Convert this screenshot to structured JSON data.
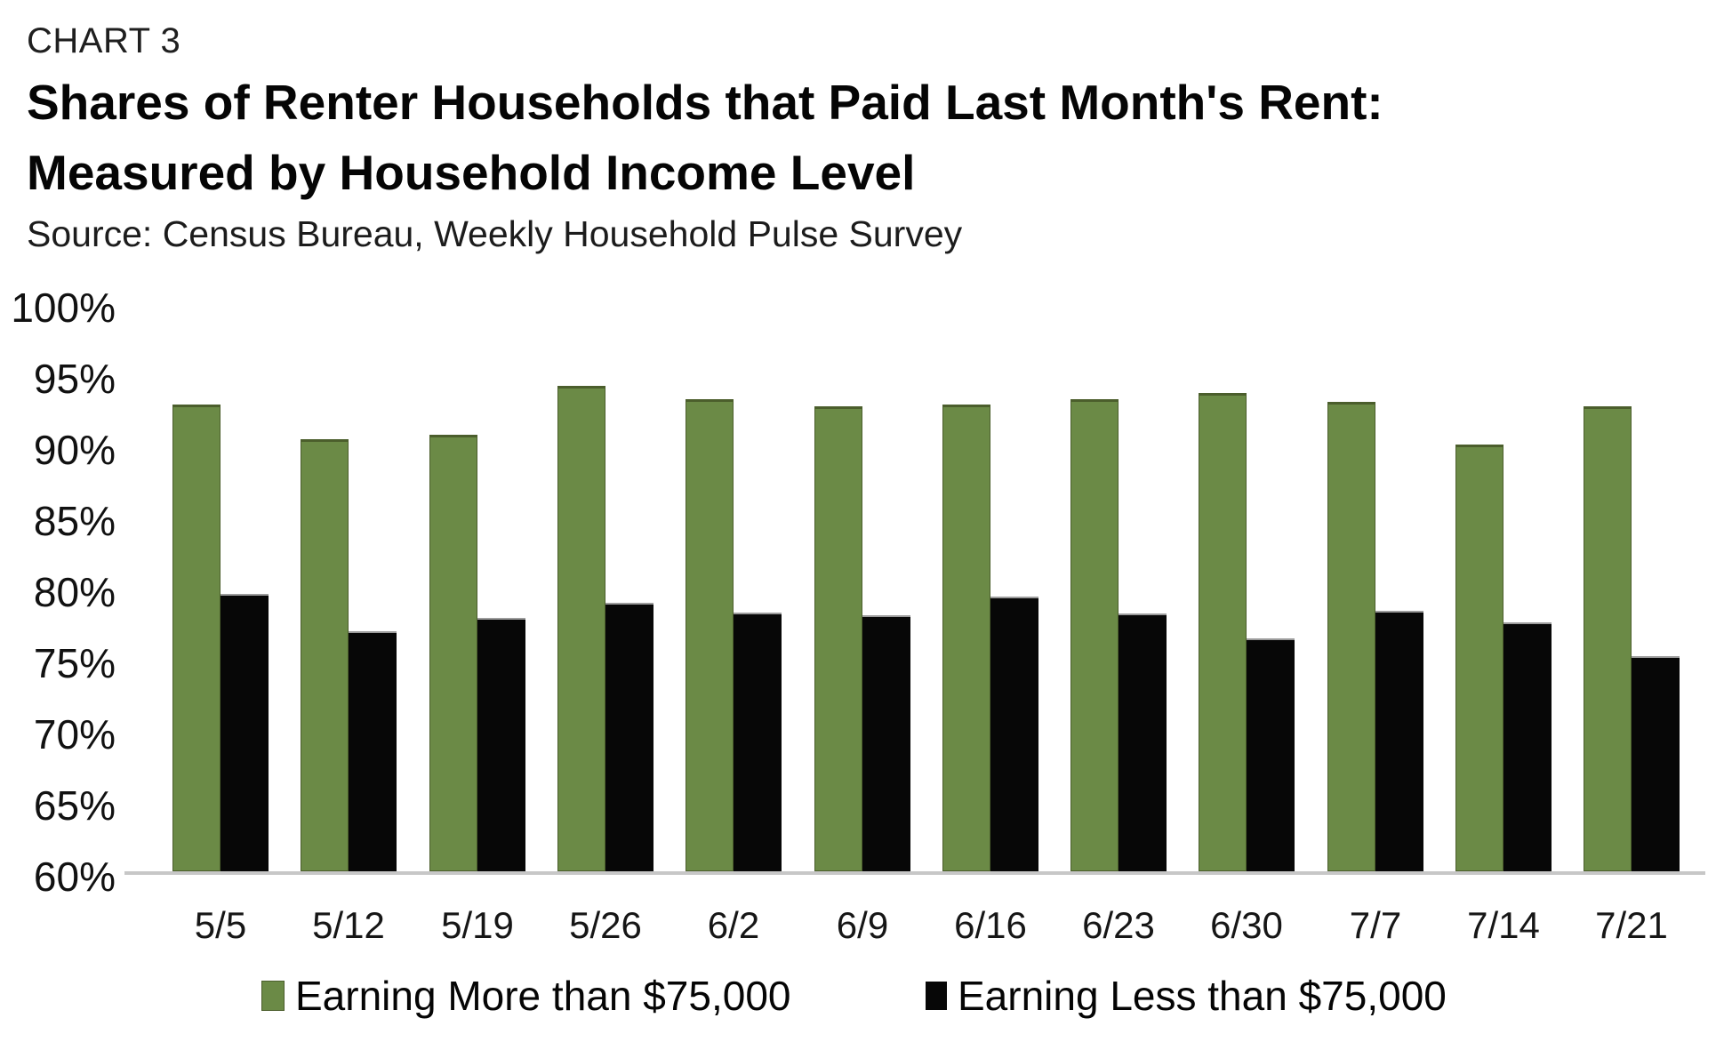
{
  "header": {
    "eyebrow": "CHART 3",
    "title_line1": "Shares of Renter Households that Paid Last Month's Rent:",
    "title_line2": "Measured by Household Income Level",
    "source": "Source: Census Bureau, Weekly Household Pulse Survey"
  },
  "chart_data": {
    "type": "bar",
    "title": "Shares of Renter Households that Paid Last Month's Rent: Measured by Household Income Level",
    "subtitle": "CHART 3",
    "source": "Source: Census Bureau, Weekly Household Pulse Survey",
    "categories": [
      "5/5",
      "5/12",
      "5/19",
      "5/26",
      "6/2",
      "6/9",
      "6/16",
      "6/23",
      "6/30",
      "7/7",
      "7/14",
      "7/21"
    ],
    "series": [
      {
        "name": "Earning More than $75,000",
        "color": "#6b8a46",
        "edge_color": "#4b5e2c",
        "values": [
          92.8,
          90.4,
          90.7,
          94.1,
          93.2,
          92.7,
          92.8,
          93.2,
          93.6,
          93.0,
          90.0,
          92.7
        ]
      },
      {
        "name": "Earning Less than $75,000",
        "color": "#070707",
        "edge_color": "#9c9c9c",
        "values": [
          79.5,
          76.9,
          77.8,
          78.9,
          78.2,
          78.0,
          79.3,
          78.1,
          76.4,
          78.3,
          77.5,
          75.1
        ]
      }
    ],
    "unit": "%",
    "ylim": [
      60,
      100
    ],
    "ytick_step": 5,
    "ytick_labels": [
      "100%",
      "95%",
      "90%",
      "85%",
      "80%",
      "75%",
      "70%",
      "65%",
      "60%"
    ],
    "grid": false,
    "legend_position": "bottom",
    "axis_line_color": "#c7c7c7",
    "background_color": "#ffffff"
  }
}
